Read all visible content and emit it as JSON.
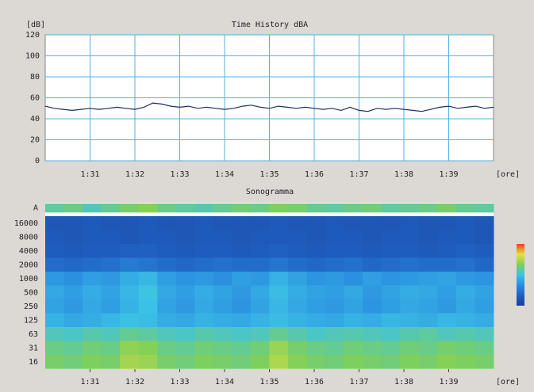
{
  "chart_data": [
    {
      "type": "line",
      "title": "Time History dBA",
      "y_unit": "[dB]",
      "x_unit": "[ore]",
      "color": "#1b2f5e",
      "grid_color": "#4fb3e6",
      "x": [
        90,
        90.2,
        90.4,
        90.6,
        90.8,
        91,
        91.2,
        91.4,
        91.6,
        91.8,
        92,
        92.2,
        92.4,
        92.6,
        92.8,
        93,
        93.2,
        93.4,
        93.6,
        93.8,
        94,
        94.2,
        94.4,
        94.6,
        94.8,
        95,
        95.2,
        95.4,
        95.6,
        95.8,
        96,
        96.2,
        96.4,
        96.6,
        96.8,
        97,
        97.2,
        97.4,
        97.6,
        97.8,
        98,
        98.2,
        98.4,
        98.6,
        98.8,
        99,
        99.2,
        99.4,
        99.6,
        99.8,
        100
      ],
      "values": [
        52,
        50,
        49,
        48,
        49,
        50,
        49,
        50,
        51,
        50,
        49,
        51,
        55,
        54,
        52,
        51,
        52,
        50,
        51,
        50,
        49,
        50,
        52,
        53,
        51,
        50,
        52,
        51,
        50,
        51,
        50,
        49,
        50,
        48,
        51,
        48,
        47,
        50,
        49,
        50,
        49,
        48,
        47,
        49,
        51,
        52,
        50,
        51,
        52,
        50,
        51
      ],
      "xlim": [
        90,
        100
      ],
      "xticks": [
        {
          "value": 91,
          "label": "1:31"
        },
        {
          "value": 92,
          "label": "1:32"
        },
        {
          "value": 93,
          "label": "1:33"
        },
        {
          "value": 94,
          "label": "1:34"
        },
        {
          "value": 95,
          "label": "1:35"
        },
        {
          "value": 96,
          "label": "1:36"
        },
        {
          "value": 97,
          "label": "1:37"
        },
        {
          "value": 98,
          "label": "1:38"
        },
        {
          "value": 99,
          "label": "1:39"
        }
      ],
      "ylim": [
        0,
        120
      ],
      "yticks": [
        0,
        20,
        40,
        60,
        80,
        100,
        120
      ],
      "grid": true
    },
    {
      "type": "heatmap",
      "title": "Sonogramma",
      "x_unit": "[ore]",
      "y_categories": [
        "A",
        "16000",
        "8000",
        "4000",
        "2000",
        "1000",
        "500",
        "250",
        "125",
        "63",
        "31",
        "16"
      ],
      "xlim": [
        90,
        100
      ],
      "xticks": [
        {
          "value": 91,
          "label": "1:31"
        },
        {
          "value": 92,
          "label": "1:32"
        },
        {
          "value": 93,
          "label": "1:33"
        },
        {
          "value": 94,
          "label": "1:34"
        },
        {
          "value": 95,
          "label": "1:35"
        },
        {
          "value": 96,
          "label": "1:36"
        },
        {
          "value": 97,
          "label": "1:37"
        },
        {
          "value": 98,
          "label": "1:38"
        },
        {
          "value": 99,
          "label": "1:39"
        }
      ],
      "zlim": [
        0,
        65
      ],
      "colors": [
        "#1a3f9a",
        "#1f5fbf",
        "#2a8ee0",
        "#3cc3e6",
        "#7fd05a",
        "#e8e040",
        "#e84020"
      ],
      "values": [
        [
          38,
          40,
          36,
          39,
          42,
          44,
          40,
          38,
          37,
          39,
          41,
          40,
          43,
          42,
          39,
          38,
          40,
          41,
          38,
          39,
          40,
          42,
          39,
          38
        ],
        [
          8,
          8,
          9,
          8,
          8,
          9,
          8,
          8,
          9,
          8,
          8,
          8,
          9,
          8,
          8,
          9,
          8,
          8,
          8,
          9,
          8,
          8,
          9,
          8
        ],
        [
          9,
          8,
          9,
          9,
          8,
          9,
          9,
          8,
          9,
          9,
          8,
          9,
          9,
          9,
          8,
          9,
          9,
          8,
          9,
          9,
          8,
          9,
          9,
          8
        ],
        [
          10,
          9,
          10,
          10,
          11,
          11,
          10,
          9,
          10,
          10,
          9,
          10,
          11,
          10,
          9,
          10,
          10,
          9,
          10,
          10,
          9,
          10,
          11,
          10
        ],
        [
          14,
          13,
          14,
          15,
          17,
          16,
          14,
          13,
          14,
          15,
          14,
          14,
          16,
          14,
          13,
          14,
          15,
          13,
          14,
          15,
          14,
          14,
          15,
          13
        ],
        [
          24,
          22,
          25,
          24,
          28,
          30,
          25,
          23,
          24,
          22,
          25,
          24,
          29,
          26,
          23,
          24,
          22,
          25,
          23,
          24,
          25,
          26,
          24,
          23
        ],
        [
          27,
          25,
          28,
          26,
          30,
          33,
          27,
          25,
          28,
          26,
          24,
          27,
          31,
          28,
          26,
          25,
          27,
          24,
          26,
          28,
          27,
          25,
          28,
          26
        ],
        [
          26,
          24,
          27,
          25,
          29,
          32,
          26,
          24,
          27,
          25,
          23,
          26,
          30,
          27,
          25,
          24,
          26,
          23,
          25,
          27,
          26,
          24,
          27,
          25
        ],
        [
          29,
          27,
          28,
          30,
          32,
          31,
          28,
          27,
          29,
          28,
          27,
          29,
          31,
          29,
          28,
          27,
          29,
          28,
          30,
          29,
          28,
          30,
          29,
          28
        ],
        [
          36,
          35,
          37,
          36,
          39,
          38,
          36,
          35,
          37,
          36,
          35,
          36,
          39,
          37,
          35,
          36,
          37,
          36,
          35,
          37,
          38,
          36,
          37,
          36
        ],
        [
          40,
          39,
          41,
          40,
          45,
          44,
          40,
          39,
          41,
          40,
          39,
          41,
          46,
          42,
          40,
          39,
          41,
          40,
          39,
          41,
          40,
          42,
          41,
          40
        ],
        [
          42,
          41,
          43,
          42,
          47,
          46,
          42,
          41,
          43,
          42,
          41,
          43,
          48,
          44,
          42,
          41,
          43,
          42,
          41,
          43,
          42,
          44,
          43,
          42
        ]
      ]
    }
  ]
}
